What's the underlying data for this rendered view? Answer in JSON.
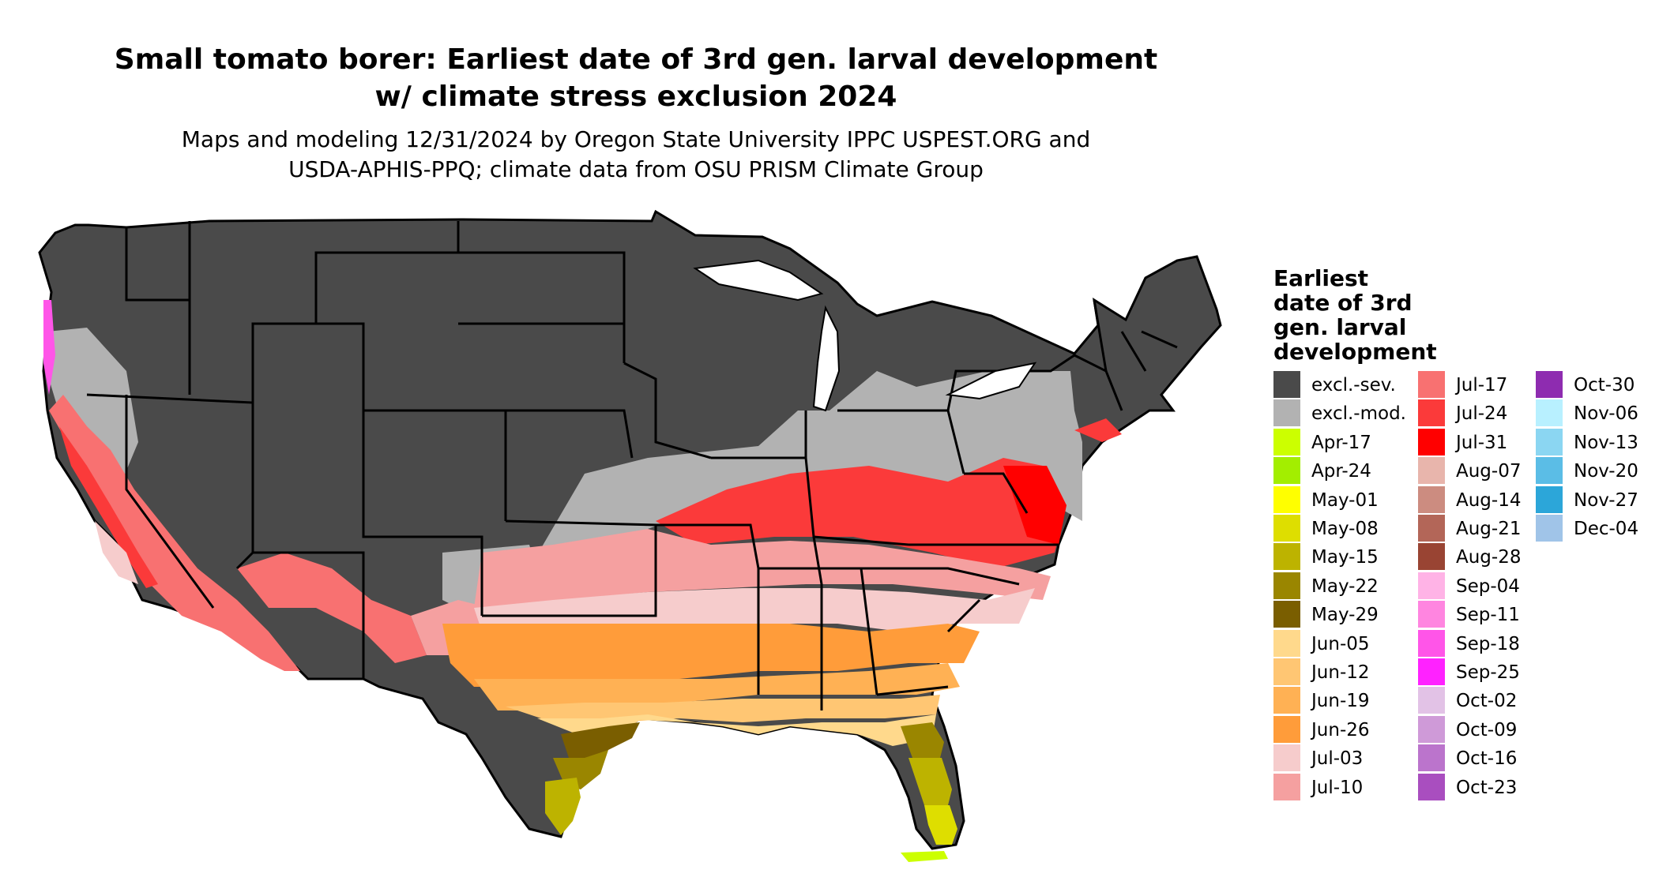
{
  "title": {
    "line1": "Small tomato borer: Earliest date of 3rd gen. larval development",
    "line2": "w/ climate stress exclusion 2024"
  },
  "subtitle": {
    "line1": "Maps and modeling 12/31/2024 by Oregon State University IPPC USPEST.ORG and",
    "line2": "USDA-APHIS-PPQ; climate data from OSU PRISM Climate Group"
  },
  "legend": {
    "title_lines": [
      "Earliest",
      "date of 3rd",
      "gen. larval",
      "development"
    ],
    "columns": [
      [
        {
          "label": "excl.-sev.",
          "color": "#4a4a4a"
        },
        {
          "label": "excl.-mod.",
          "color": "#b2b2b2"
        },
        {
          "label": "Apr-17",
          "color": "#ccff00"
        },
        {
          "label": "Apr-24",
          "color": "#a3ee00"
        },
        {
          "label": "May-01",
          "color": "#ffff00"
        },
        {
          "label": "May-08",
          "color": "#dede00"
        },
        {
          "label": "May-15",
          "color": "#bdb300"
        },
        {
          "label": "May-22",
          "color": "#9a8600"
        },
        {
          "label": "May-29",
          "color": "#7a5e00"
        },
        {
          "label": "Jun-05",
          "color": "#ffd98c"
        },
        {
          "label": "Jun-12",
          "color": "#ffc673"
        },
        {
          "label": "Jun-19",
          "color": "#ffb154"
        },
        {
          "label": "Jun-26",
          "color": "#ff9c3a"
        },
        {
          "label": "Jul-03",
          "color": "#f6cccc"
        },
        {
          "label": "Jul-10",
          "color": "#f5a0a0"
        }
      ],
      [
        {
          "label": "Jul-17",
          "color": "#f87171"
        },
        {
          "label": "Jul-24",
          "color": "#fb3a3a"
        },
        {
          "label": "Jul-31",
          "color": "#ff0000"
        },
        {
          "label": "Aug-07",
          "color": "#e8b5ac"
        },
        {
          "label": "Aug-14",
          "color": "#cc8c80"
        },
        {
          "label": "Aug-21",
          "color": "#b36658"
        },
        {
          "label": "Aug-28",
          "color": "#994433"
        },
        {
          "label": "Sep-04",
          "color": "#ffb3e6"
        },
        {
          "label": "Sep-11",
          "color": "#ff85e0"
        },
        {
          "label": "Sep-18",
          "color": "#ff55e8"
        },
        {
          "label": "Sep-25",
          "color": "#ff22ff"
        },
        {
          "label": "Oct-02",
          "color": "#e2c2e6"
        },
        {
          "label": "Oct-09",
          "color": "#cf9ad8"
        },
        {
          "label": "Oct-16",
          "color": "#bb74cc"
        },
        {
          "label": "Oct-23",
          "color": "#a94ebf"
        }
      ],
      [
        {
          "label": "Oct-30",
          "color": "#8e2cb0"
        },
        {
          "label": "Nov-06",
          "color": "#b8f0ff"
        },
        {
          "label": "Nov-13",
          "color": "#8bd6f2"
        },
        {
          "label": "Nov-20",
          "color": "#5bbde6"
        },
        {
          "label": "Nov-27",
          "color": "#2ca6d9"
        },
        {
          "label": "Dec-04",
          "color": "#a0c4e8"
        }
      ]
    ]
  }
}
